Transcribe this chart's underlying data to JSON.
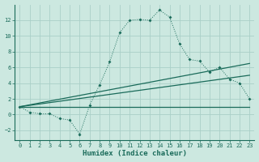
{
  "xlabel": "Humidex (Indice chaleur)",
  "bg_color": "#cce8e0",
  "grid_color": "#aacfc8",
  "line_color": "#1a6b5a",
  "xlim": [
    -0.5,
    23.5
  ],
  "ylim": [
    -3.2,
    14.0
  ],
  "xticks": [
    0,
    1,
    2,
    3,
    4,
    5,
    6,
    7,
    8,
    9,
    10,
    11,
    12,
    13,
    14,
    15,
    16,
    17,
    18,
    19,
    20,
    21,
    22,
    23
  ],
  "yticks": [
    -2,
    0,
    2,
    4,
    6,
    8,
    10,
    12
  ],
  "main_line": [
    [
      0,
      1.0
    ],
    [
      1,
      0.3
    ],
    [
      2,
      0.1
    ],
    [
      3,
      0.1
    ],
    [
      4,
      -0.5
    ],
    [
      5,
      -0.7
    ],
    [
      6,
      -2.5
    ],
    [
      7,
      1.2
    ],
    [
      8,
      3.8
    ],
    [
      9,
      6.7
    ],
    [
      10,
      10.4
    ],
    [
      11,
      12.0
    ],
    [
      12,
      12.1
    ],
    [
      13,
      12.0
    ],
    [
      14,
      13.3
    ],
    [
      15,
      12.4
    ],
    [
      16,
      9.0
    ],
    [
      17,
      7.0
    ],
    [
      18,
      6.8
    ],
    [
      19,
      5.4
    ],
    [
      20,
      6.0
    ],
    [
      21,
      4.5
    ],
    [
      22,
      4.0
    ],
    [
      23,
      2.0
    ]
  ],
  "line_flat": [
    [
      0,
      1.0
    ],
    [
      23,
      1.0
    ]
  ],
  "line_high": [
    [
      0,
      1.0
    ],
    [
      23,
      6.5
    ]
  ],
  "line_mid": [
    [
      0,
      1.0
    ],
    [
      23,
      5.0
    ]
  ]
}
